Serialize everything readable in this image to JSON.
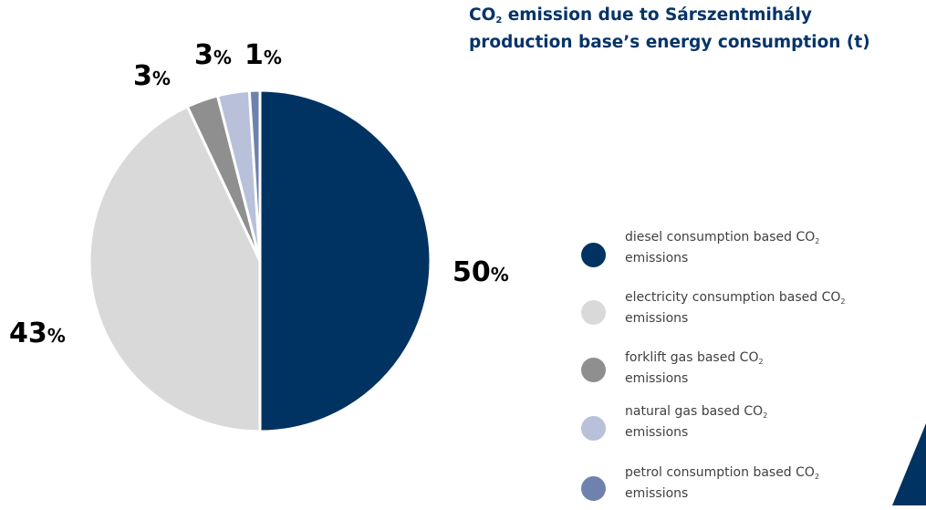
{
  "chart_data": {
    "type": "pie",
    "title_line1_pre": "CO",
    "title_sub": "2",
    "title_line1_post": " emission due to Sárszentmihály",
    "title_line2": "production base’s energy consumption (t)",
    "unit_symbol": "%",
    "slices": [
      {
        "value": 50,
        "label": "50",
        "color": "#003361",
        "legend_pre": "diesel consumption based CO",
        "legend_sub": "2",
        "legend_post": " emissions"
      },
      {
        "value": 43,
        "label": "43",
        "color": "#d9d9d9",
        "legend_pre": "electricity consumption based CO",
        "legend_sub": "2",
        "legend_post": " emissions"
      },
      {
        "value": 3,
        "label": "3",
        "color": "#8f8f8f",
        "legend_pre": "forklift gas based CO",
        "legend_sub": "2",
        "legend_post": " emissions"
      },
      {
        "value": 3,
        "label": "3",
        "color": "#b8c0da",
        "legend_pre": "natural gas based CO",
        "legend_sub": "2",
        "legend_post": " emissions"
      },
      {
        "value": 1,
        "label": "1",
        "color": "#6f82ad",
        "legend_pre": "petrol consumption based CO",
        "legend_sub": "2",
        "legend_post": " emissions"
      }
    ]
  },
  "decoration": {
    "corner_color": "#003361"
  }
}
